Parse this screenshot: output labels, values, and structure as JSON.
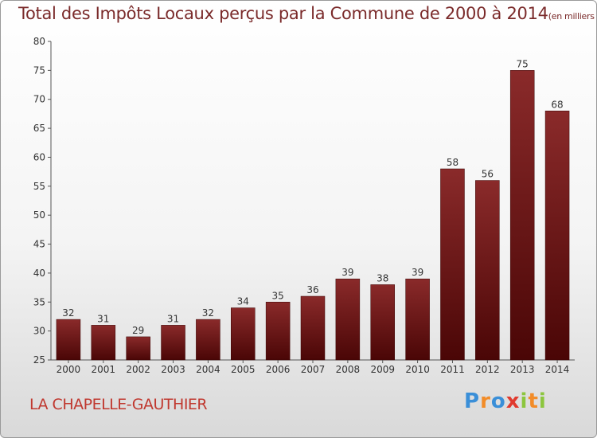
{
  "chart_data": {
    "type": "bar",
    "title": "Total des Impôts Locaux perçus par la Commune de 2000 à 2014",
    "title_unit": "(en milliers d'€)",
    "categories": [
      "2000",
      "2001",
      "2002",
      "2003",
      "2004",
      "2005",
      "2006",
      "2007",
      "2008",
      "2009",
      "2010",
      "2011",
      "2012",
      "2013",
      "2014"
    ],
    "values": [
      32,
      31,
      29,
      31,
      32,
      34,
      35,
      36,
      39,
      38,
      39,
      58,
      56,
      75,
      68
    ],
    "ylim": [
      25,
      80
    ],
    "yticks": [
      25,
      30,
      35,
      40,
      45,
      50,
      55,
      60,
      65,
      70,
      75,
      80
    ],
    "xlabel": "",
    "ylabel": "",
    "bar_color": "#6e1414",
    "grid": false
  },
  "commune_name": "LA CHAPELLE-GAUTHIER",
  "logo": {
    "letters": [
      "P",
      "r",
      "o",
      "x",
      "i",
      "t",
      "i"
    ],
    "colors": [
      "#3a8fd8",
      "#f28c28",
      "#3a8fd8",
      "#e03a2e",
      "#8cc63e",
      "#f28c28",
      "#8cc63e"
    ]
  }
}
